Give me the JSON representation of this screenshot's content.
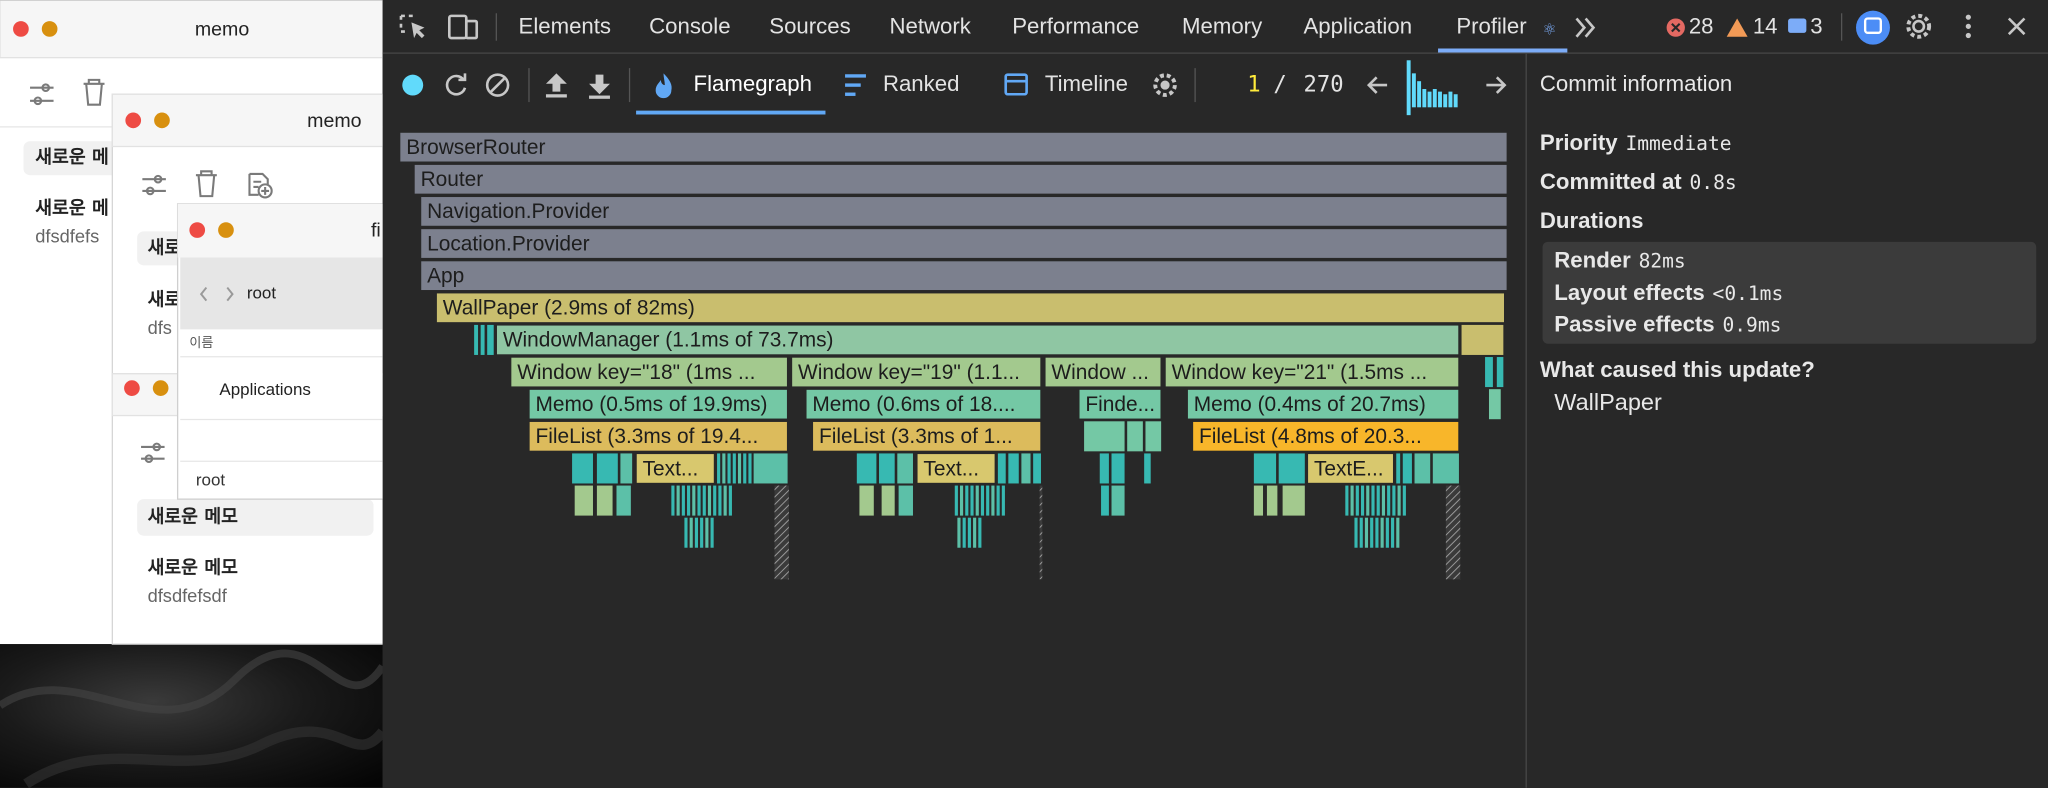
{
  "windows": [
    {
      "title": "memo",
      "selected_item": "새로운 메",
      "item_title": "새로운 메",
      "item_body": "dfsdfefs"
    },
    {
      "title": "memo",
      "selected_item": "새로",
      "item_title": "새로",
      "item_body": "dfs"
    },
    {
      "selected_item": "새로운 메모",
      "item_title": "새로운 메모",
      "item_body": "dfsdfefsdf"
    },
    {
      "title": "fi",
      "path": "root",
      "column_header": "이름",
      "row": "Applications",
      "footer_path": "root"
    }
  ],
  "devtools": {
    "tabs": [
      "Elements",
      "Console",
      "Sources",
      "Network",
      "Performance",
      "Memory",
      "Application",
      "Profiler"
    ],
    "errors": "28",
    "warnings": "14",
    "messages": "3"
  },
  "profiler": {
    "views": [
      "Flamegraph",
      "Ranked",
      "Timeline"
    ],
    "commit_current": "1",
    "commit_separator": "/",
    "commit_total": "270"
  },
  "flamegraph": {
    "nodes": [
      "BrowserRouter",
      "Router",
      "Navigation.Provider",
      "Location.Provider",
      "App",
      "WallPaper (2.9ms of 82ms)",
      "WindowManager (1.1ms of 73.7ms)",
      "Window key=\"18\" (1ms ...",
      "Window key=\"19\" (1.1...",
      "Window ...",
      "Window key=\"21\" (1.5ms ...",
      "Memo (0.5ms of 19.9ms)",
      "Memo (0.6ms of 18....",
      "Finde...",
      "Memo (0.4ms of 20.7ms)",
      "FileList (3.3ms of 19.4...",
      "FileList (3.3ms of 1...",
      "FileList (4.8ms of 20.3...",
      "Text...",
      "Text...",
      "TextE..."
    ]
  },
  "commit_info": {
    "title": "Commit information",
    "priority_label": "Priority",
    "priority": "Immediate",
    "committed_label": "Committed at",
    "committed": "0.8s",
    "durations_label": "Durations",
    "render_label": "Render",
    "render": "82ms",
    "layout_label": "Layout effects",
    "layout": "<0.1ms",
    "passive_label": "Passive effects",
    "passive": "0.9ms",
    "cause_label": "What caused this update?",
    "cause": "WallPaper"
  }
}
